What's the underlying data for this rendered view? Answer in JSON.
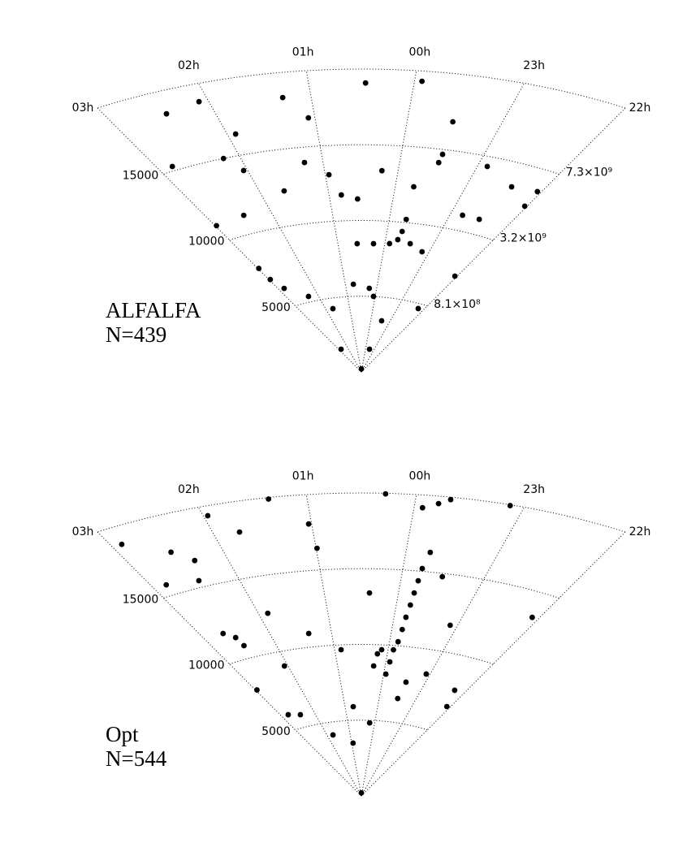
{
  "chart_data": [
    {
      "type": "wedge",
      "annotations": [
        "ALFALFA",
        "N=439"
      ],
      "xlim": [
        -2,
        3
      ],
      "xticks": [
        {
          "value": -2,
          "label": "22h"
        },
        {
          "value": -1,
          "label": "23h"
        },
        {
          "value": 0,
          "label": "00h"
        },
        {
          "value": 1,
          "label": "01h"
        },
        {
          "value": 2,
          "label": "02h"
        },
        {
          "value": 3,
          "label": "03h"
        }
      ],
      "ylim": [
        0,
        20000
      ],
      "yticks": [
        5000,
        10000,
        15000
      ],
      "mass_labels": [
        "8.1×10⁸",
        "3.2×10⁹",
        "7.3×10⁹"
      ],
      "color": "#000000",
      "x": [
        -0.25,
        0.59,
        -0.85,
        0.75,
        0.06,
        2.33,
        2.84,
        2.77,
        -0.57,
        2.98,
        2.45,
        1.65,
        0.81,
        0.22,
        -0.51,
        -1.59,
        -1.95,
        -1.2,
        1.07,
        1.91,
        2.46,
        2.09,
        1.28,
        0.46,
        -0.07,
        -0.49,
        2.83,
        -1.95,
        -1.78,
        2.97,
        1.71,
        0.5,
        -0.3,
        0.24,
        0.95,
        1.24,
        -1.12,
        -1.97,
        -1.5,
        -0.5,
        -0.27,
        2.05,
        2.2,
        -0.1,
        -0.53,
        -0.29,
        0.24,
        2.98,
        0.56,
        -0.47
      ],
      "y": [
        8840,
        8470,
        8250,
        5800,
        5010,
        5360,
        6220,
        1680,
        3460,
        11060,
        11230,
        12290,
        11710,
        13310,
        14680,
        13440,
        13590,
        11010,
        16890,
        16390,
        18520,
        18840,
        18350,
        19080,
        19320,
        16860,
        15280,
        7220,
        4690,
        6980,
        4310,
        200,
        10210,
        8480,
        13080,
        13990,
        14350,
        12520,
        10990,
        14120,
        12380,
        14000,
        15000,
        8540,
        8660,
        9400,
        5530,
        7830,
        11420,
        1530
      ]
    },
    {
      "type": "wedge",
      "annotations": [
        "Opt",
        "N=544"
      ],
      "xlim": [
        -2,
        3
      ],
      "xticks": [
        {
          "value": -2,
          "label": "22h"
        },
        {
          "value": -1,
          "label": "23h"
        },
        {
          "value": 0,
          "label": "00h"
        },
        {
          "value": 1,
          "label": "01h"
        },
        {
          "value": 2,
          "label": "02h"
        },
        {
          "value": 3,
          "label": "03h"
        }
      ],
      "ylim": [
        0,
        20000
      ],
      "yticks": [
        5000,
        10000,
        15000
      ],
      "color": "#000000",
      "x": [
        -0.08,
        -0.15,
        -0.18,
        -0.21,
        -0.23,
        -0.27,
        0.24,
        0.12,
        -0.92,
        -0.51,
        -0.22,
        -0.32,
        -0.08,
        0.28,
        0.99,
        1.03,
        1.35,
        1.96,
        2.9,
        2.52,
        2.84,
        2.35,
        2.46,
        1.74,
        2.55,
        2.52,
        2.68,
        2.45,
        2.79,
        1.75,
        0.75,
        0.19,
        1.87,
        1.38,
        0.5,
        -0.89,
        -0.5,
        -1.91,
        -0.87,
        -1.75,
        -1.91,
        0.88,
        0.39,
        2.07,
        2.97,
        -0.56,
        0.93,
        -0.1,
        -0.05,
        -0.17,
        0.19,
        -0.2,
        -0.22
      ],
      "y": [
        8910,
        10270,
        11910,
        13540,
        15180,
        16280,
        8590,
        9680,
        8400,
        6570,
        19510,
        19840,
        19160,
        19960,
        16430,
        18060,
        19900,
        19360,
        18850,
        17580,
        15710,
        16730,
        15440,
        18000,
        11450,
        10840,
        11890,
        5820,
        6010,
        4160,
        5900,
        4830,
        12550,
        10900,
        200,
        11740,
        14780,
        13390,
        19950,
        7790,
        6700,
        9680,
        13400,
        9040,
        8000,
        7690,
        3500,
        9720,
        8090,
        11090,
        9400,
        12730,
        14360
      ]
    }
  ]
}
